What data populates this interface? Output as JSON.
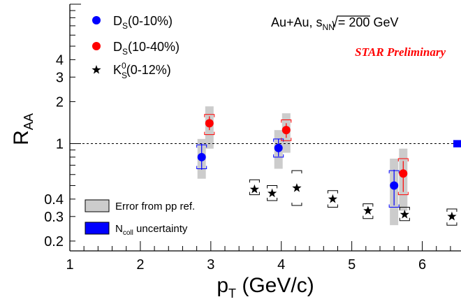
{
  "chart_data": {
    "type": "scatter",
    "x_axis": {
      "title": "p",
      "title_sub": "T",
      "title_unit": " (GeV/c)",
      "range": [
        1,
        6.5
      ],
      "ticks": [
        "1",
        "2",
        "3",
        "4",
        "5",
        "6"
      ]
    },
    "y_axis": {
      "title": "R",
      "title_sub": "AA",
      "scale": "log",
      "range": [
        0.17,
        10
      ],
      "ticks": [
        "0.2",
        "0.3",
        "0.4",
        "1",
        "2",
        "3",
        "4"
      ]
    },
    "reference_line": {
      "y": 1,
      "style": "dashed"
    },
    "system_label": {
      "prefix": "Au+Au, ",
      "sqrt": "s",
      "sqrt_sub": "NN",
      "suffix": " = 200 GeV"
    },
    "preliminary_label": "STAR Preliminary",
    "legend": [
      {
        "base": "D",
        "sub": "S",
        "sup": "",
        "rest": "(0-10%)",
        "color": "#0000ff",
        "marker": "circle"
      },
      {
        "base": "D",
        "sub": "S",
        "sup": "",
        "rest": "(10-40%)",
        "color": "#ff0000",
        "marker": "circle"
      },
      {
        "base": "K",
        "sub": "S",
        "sup": "0",
        "rest": "(0-12%)",
        "color": "#000000",
        "marker": "star"
      }
    ],
    "legend_bottom": [
      {
        "label": "Error from pp ref.",
        "label_sub": "",
        "label_rest": "",
        "fill": "#cccccc",
        "stroke": "#000000"
      },
      {
        "label": "N",
        "label_sub": "coll",
        "label_rest": " uncertainty",
        "fill": "#0000ff",
        "stroke": "#000000"
      }
    ],
    "series": [
      {
        "name": "D_S(0-10%)",
        "color": "#0000ff",
        "marker": "circle",
        "points": [
          {
            "x": 2.87,
            "y": 0.8,
            "stat": [
              0.65,
              1.0
            ],
            "sys": [
              0.66,
              0.98
            ],
            "ppref": [
              0.56,
              1.08
            ]
          },
          {
            "x": 3.96,
            "y": 0.93,
            "stat": [
              0.81,
              1.08
            ],
            "sys": [
              0.8,
              1.08
            ],
            "ppref": [
              0.66,
              1.25
            ]
          },
          {
            "x": 5.6,
            "y": 0.5,
            "stat": [
              0.36,
              0.65
            ],
            "sys": [
              0.35,
              0.64
            ],
            "ppref": [
              0.26,
              0.78
            ]
          }
        ]
      },
      {
        "name": "D_S(10-40%)",
        "color": "#ff0000",
        "marker": "circle",
        "points": [
          {
            "x": 2.98,
            "y": 1.4,
            "stat": [
              1.25,
              1.57
            ],
            "sys": [
              1.16,
              1.62
            ],
            "ppref": [
              0.92,
              1.85
            ]
          },
          {
            "x": 4.07,
            "y": 1.25,
            "stat": [
              1.1,
              1.4
            ],
            "sys": [
              1.05,
              1.48
            ],
            "ppref": [
              0.86,
              1.65
            ]
          },
          {
            "x": 5.73,
            "y": 0.61,
            "stat": [
              0.45,
              0.75
            ],
            "sys": [
              0.43,
              0.78
            ],
            "ppref": [
              0.33,
              0.92
            ]
          }
        ]
      },
      {
        "name": "K_S^0(0-12%)",
        "color": "#000000",
        "marker": "star",
        "points": [
          {
            "x": 3.62,
            "y": 0.47,
            "sys": [
              0.43,
              0.55
            ]
          },
          {
            "x": 3.87,
            "y": 0.44,
            "sys": [
              0.39,
              0.5
            ]
          },
          {
            "x": 4.22,
            "y": 0.48,
            "sys": [
              0.36,
              0.64
            ]
          },
          {
            "x": 4.73,
            "y": 0.4,
            "sys": [
              0.35,
              0.46
            ]
          },
          {
            "x": 5.23,
            "y": 0.33,
            "sys": [
              0.29,
              0.37
            ]
          },
          {
            "x": 5.75,
            "y": 0.31,
            "sys": [
              0.28,
              0.35
            ]
          },
          {
            "x": 6.42,
            "y": 0.3,
            "sys": [
              0.26,
              0.34
            ]
          }
        ]
      }
    ],
    "ncoll_box": {
      "x": 6.5,
      "y": 1.0,
      "range": [
        0.94,
        1.06
      ],
      "color": "#0000ff"
    }
  }
}
